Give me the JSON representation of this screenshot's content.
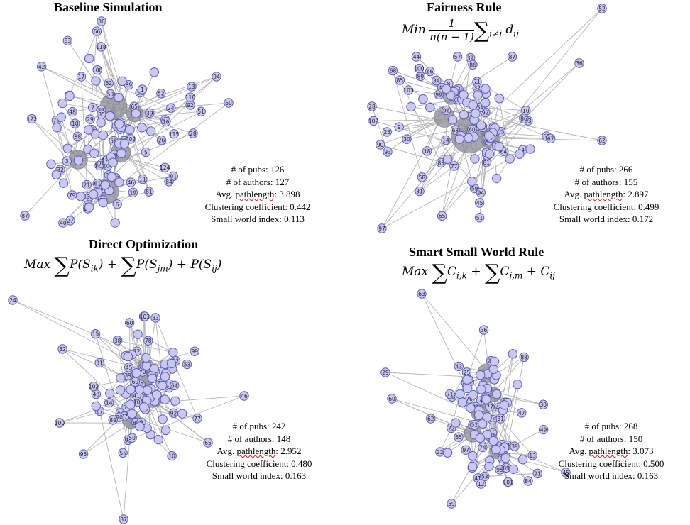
{
  "panels": [
    {
      "id": "baseline",
      "title": "Baseline Simulation",
      "formula": null,
      "stats": {
        "pubs": "# of pubs: 126",
        "authors": "# of authors: 127",
        "pathlength_prefix": "Avg. ",
        "pathlength_word": "pathlength",
        "pathlength_value": ": 3.898",
        "clustering": "Clustering coefficient: 0.442",
        "smallworld": "Small world index: 0.113"
      },
      "visible_node_labels": [
        "36",
        "102",
        "87",
        "66",
        "94",
        "62",
        "60",
        "12",
        "13",
        "59",
        "92",
        "27",
        "28",
        "73",
        "30",
        "26",
        "32",
        "74",
        "3",
        "46",
        "61",
        "124",
        "76",
        "101",
        "31",
        "6",
        "40",
        "39",
        "77",
        "38",
        "19",
        "17",
        "115",
        "70",
        "1",
        "24",
        "80",
        "103",
        "52",
        "122",
        "53",
        "108",
        "7",
        "48",
        "21",
        "23",
        "10",
        "65",
        "42",
        "79",
        "16",
        "81",
        "104",
        "57",
        "29",
        "85",
        "88",
        "126",
        "118",
        "86",
        "89",
        "91",
        "110",
        "50",
        "47",
        "83",
        "84",
        "51",
        "11",
        "5",
        "37"
      ]
    },
    {
      "id": "fairness",
      "title": "Fairness Rule",
      "formula": {
        "lead": "Min",
        "num": "1",
        "den": "n(n − 1)",
        "sub": "i≠j",
        "term": "d",
        "termsub": "ij"
      },
      "stats": {
        "pubs": "# of pubs: 266",
        "authors": "# of authors: 155",
        "pathlength_prefix": "Avg. ",
        "pathlength_word": "pathlength",
        "pathlength_value": ": 2.897",
        "clustering": "Clustering coefficient: 0.499",
        "smallworld": "Small world index: 0.172"
      },
      "visible_node_labels": [
        "52",
        "31",
        "36",
        "71",
        "28",
        "99",
        "93",
        "63",
        "62",
        "32",
        "97",
        "51",
        "61",
        "41",
        "39",
        "83",
        "49",
        "89",
        "81",
        "21",
        "92",
        "68",
        "45",
        "66",
        "54",
        "53",
        "60",
        "82",
        "10",
        "74",
        "59",
        "103",
        "44",
        "43",
        "58",
        "14",
        "64",
        "55",
        "85",
        "16",
        "29",
        "90",
        "77",
        "94",
        "102",
        "100",
        "67",
        "25",
        "9",
        "87",
        "86",
        "86",
        "30",
        "57",
        "4",
        "18",
        "47",
        "65",
        "34",
        "20",
        "96",
        "46",
        "78",
        "8"
      ]
    },
    {
      "id": "direct",
      "title": "Direct Optimization",
      "formula": {
        "lead": "Max",
        "t1": "P",
        "s1": "ik",
        "t2": "P",
        "s2": "jm",
        "t3": "P",
        "s3": "ij"
      },
      "stats": {
        "pubs": "# of pubs: 242",
        "authors": "# of authors: 148",
        "pathlength_prefix": "Avg. ",
        "pathlength_word": "pathlength",
        "pathlength_value": ": 2.952",
        "clustering": "Clustering coefficient: 0.480",
        "smallworld": "Small world index: 0.163"
      },
      "visible_node_labels": [
        "24",
        "37",
        "32",
        "54",
        "100",
        "61",
        "87",
        "47",
        "46",
        "16",
        "65",
        "14",
        "101",
        "10",
        "74",
        "48",
        "93",
        "60",
        "84",
        "70",
        "57",
        "83",
        "69",
        "78",
        "76",
        "82",
        "21",
        "102",
        "91",
        "26",
        "64",
        "92",
        "39",
        "77",
        "51",
        "38",
        "90",
        "41",
        "99",
        "95",
        "103",
        "33",
        "31",
        "45",
        "53",
        "55",
        "89",
        "72",
        "43",
        "50",
        "12",
        "22",
        "27",
        "9",
        "15"
      ]
    },
    {
      "id": "smart",
      "title": "Smart Small World Rule",
      "formula": {
        "lead": "Max",
        "t1": "C",
        "s1": "i,k",
        "t2": "C",
        "s2": "j,m",
        "t3": "C",
        "s3": "ij"
      },
      "stats": {
        "pubs": "# of pubs: 268",
        "authors": "# of authors: 150",
        "pathlength_prefix": "Avg. ",
        "pathlength_word": "pathlength",
        "pathlength_value": ": 3.073",
        "clustering": "Clustering coefficient: 0.500",
        "smallworld": "Small world index: 0.163"
      },
      "visible_node_labels": [
        "63",
        "16",
        "29",
        "10",
        "60",
        "44",
        "45",
        "33",
        "59",
        "69",
        "84",
        "86",
        "70",
        "77",
        "43",
        "22",
        "66",
        "98",
        "36",
        "31",
        "52",
        "47",
        "4",
        "72",
        "83",
        "41",
        "65",
        "85",
        "39",
        "74",
        "14",
        "25",
        "82",
        "91",
        "97",
        "53",
        "95",
        "89",
        "34",
        "67",
        "62",
        "30",
        "28",
        "61",
        "88",
        "71",
        "32",
        "55",
        "49",
        "101",
        "12",
        "13",
        "21"
      ]
    }
  ],
  "colors": {
    "node_fill": "#c9c9f0",
    "node_stroke": "#5a5ab8",
    "edge": "#b4b4b4",
    "hub": "#8c8c96",
    "squiggle": "#d02020"
  }
}
